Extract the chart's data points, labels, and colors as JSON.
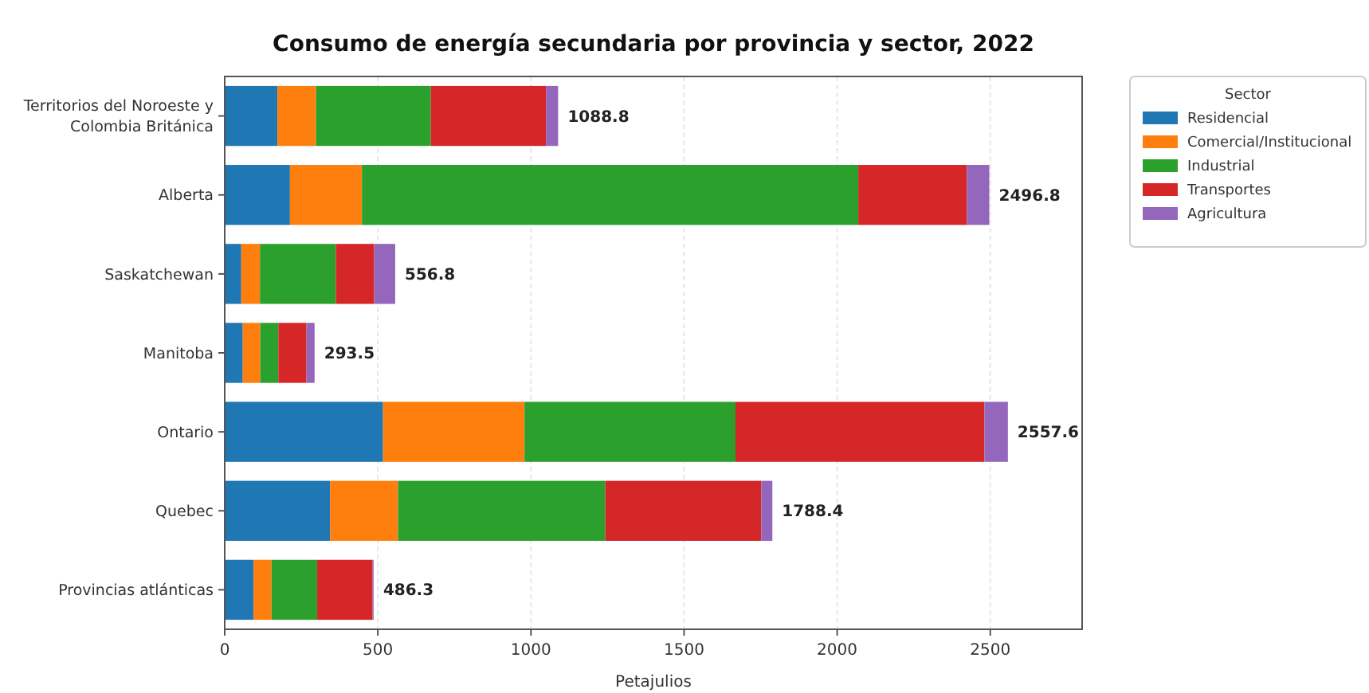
{
  "chart_data": {
    "type": "bar",
    "orientation": "horizontal",
    "stacked": true,
    "title": "Consumo de energía secundaria por provincia y sector, 2022",
    "xlabel": "Petajulios",
    "legend_title": "Sector",
    "legend": "top right",
    "grid": "x",
    "categories": [
      "Territorios del Noroeste y Colombia Británica",
      "Alberta",
      "Saskatchewan",
      "Manitoba",
      "Ontario",
      "Quebec",
      "Provincias atlánticas"
    ],
    "series": [
      {
        "name": "Residencial",
        "color": "#1f77b4",
        "values": [
          172,
          213,
          54,
          59,
          517,
          344,
          94
        ]
      },
      {
        "name": "Comercial/Institucional",
        "color": "#ff7f0e",
        "values": [
          126,
          235,
          61,
          57,
          462,
          222,
          59
        ]
      },
      {
        "name": "Industrial",
        "color": "#2ca02c",
        "values": [
          375,
          1621,
          248,
          59,
          689,
          677,
          149
        ]
      },
      {
        "name": "Transportes",
        "color": "#d62728",
        "values": [
          376,
          355,
          125,
          92,
          813,
          509,
          181
        ]
      },
      {
        "name": "Agricultura",
        "color": "#9467bd",
        "values": [
          39.8,
          72.8,
          68.8,
          26.5,
          76.6,
          36.4,
          3.3
        ]
      }
    ],
    "totals": [
      "1088.8",
      "2496.8",
      "556.8",
      "293.5",
      "2557.6",
      "1788.4",
      "486.3"
    ],
    "xlim": [
      0,
      2800
    ],
    "xticks": [
      0,
      500,
      1000,
      1500,
      2000,
      2500
    ]
  }
}
